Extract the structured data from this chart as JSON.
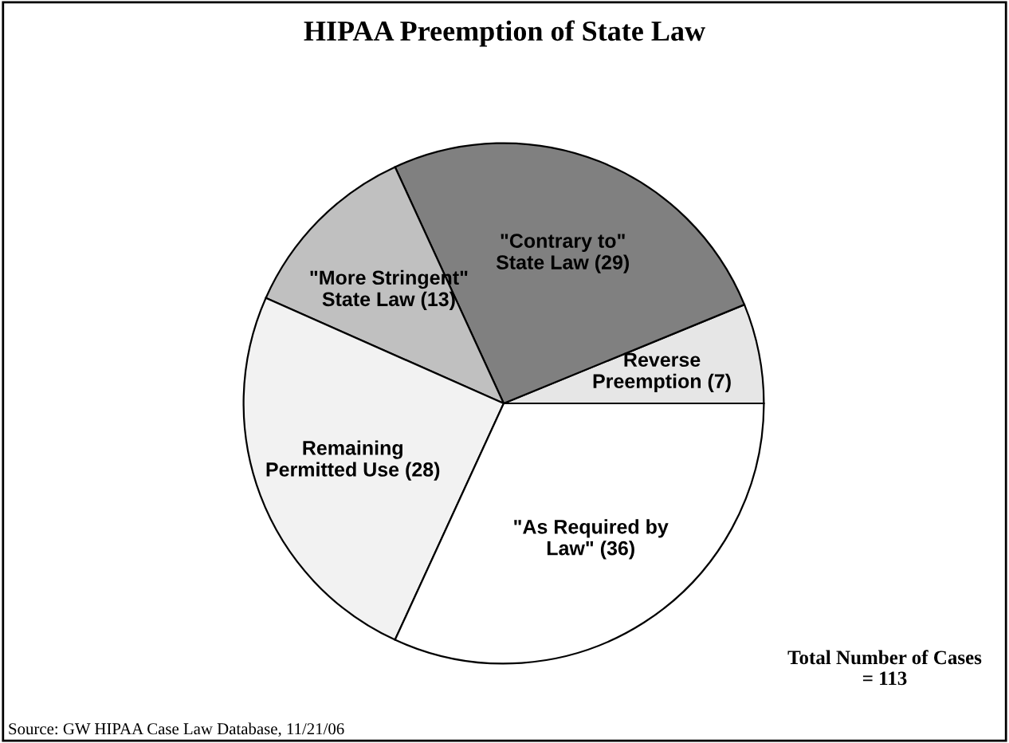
{
  "chart_data": {
    "type": "pie",
    "title": "HIPAA Preemption of State Law",
    "categories": [
      "Reverse\nPreemption (7)",
      "\"Contrary to\"\nState Law (29)",
      "\"More Stringent\"\nState Law (13)",
      "Remaining\nPermitted Use (28)",
      "\"As Required by\nLaw\" (36)"
    ],
    "values": [
      7,
      29,
      13,
      28,
      36
    ],
    "colors": [
      "#e6e6e6",
      "#808080",
      "#c0c0c0",
      "#f2f2f2",
      "#ffffff"
    ],
    "annotations": [
      "Total Number of Cases\n= 113",
      "Source: GW HIPAA Case Law Database, 11/21/06"
    ]
  }
}
